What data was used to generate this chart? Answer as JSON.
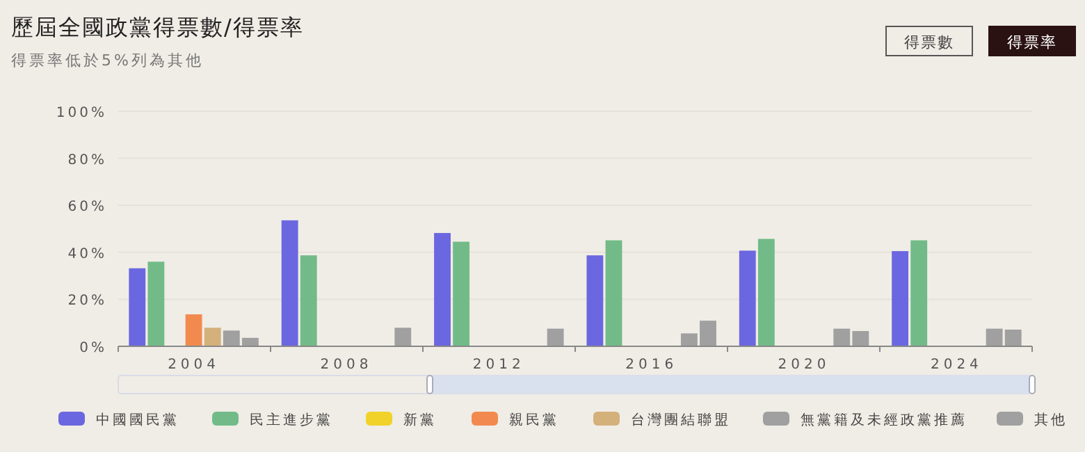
{
  "chart_data": {
    "type": "bar",
    "title": "歷屆全國政黨得票數/得票率",
    "subtitle": "得票率低於5%列為其他",
    "annotations": [
      "得票數",
      "得票率"
    ],
    "categories": [
      "2004",
      "2008",
      "2012",
      "2016",
      "2020",
      "2024"
    ],
    "series": [
      {
        "name": "中國國民黨",
        "color": "#6b67e0",
        "values": [
          33.2,
          53.6,
          48.2,
          38.7,
          40.7,
          40.5
        ]
      },
      {
        "name": "民主進步黨",
        "color": "#72bb88",
        "values": [
          36.0,
          38.7,
          44.5,
          45.1,
          45.7,
          45.1
        ]
      },
      {
        "name": "新黨",
        "color": "#f0d22a",
        "values": [
          null,
          null,
          null,
          null,
          null,
          null
        ]
      },
      {
        "name": "親民黨",
        "color": "#f28a50",
        "values": [
          13.6,
          null,
          null,
          null,
          null,
          null
        ]
      },
      {
        "name": "台灣團結聯盟",
        "color": "#d4b07a",
        "values": [
          7.9,
          null,
          null,
          null,
          null,
          null
        ]
      },
      {
        "name": "無黨籍及未經政黨推薦",
        "color": "#a0a0a0",
        "values": [
          6.7,
          null,
          null,
          5.5,
          7.5,
          7.5
        ]
      },
      {
        "name": "其他",
        "color": "#a0a0a0",
        "values": [
          3.6,
          7.9,
          7.5,
          10.9,
          6.5,
          7.1
        ]
      }
    ],
    "ylim": [
      0,
      100
    ],
    "yticks": [
      {
        "value": 0,
        "label": "0%"
      },
      {
        "value": 20,
        "label": "20%"
      },
      {
        "value": 40,
        "label": "40%"
      },
      {
        "value": 60,
        "label": "60%"
      },
      {
        "value": 80,
        "label": "80%"
      },
      {
        "value": 100,
        "label": "100%"
      }
    ],
    "grid": "y",
    "legend": "bottom"
  }
}
